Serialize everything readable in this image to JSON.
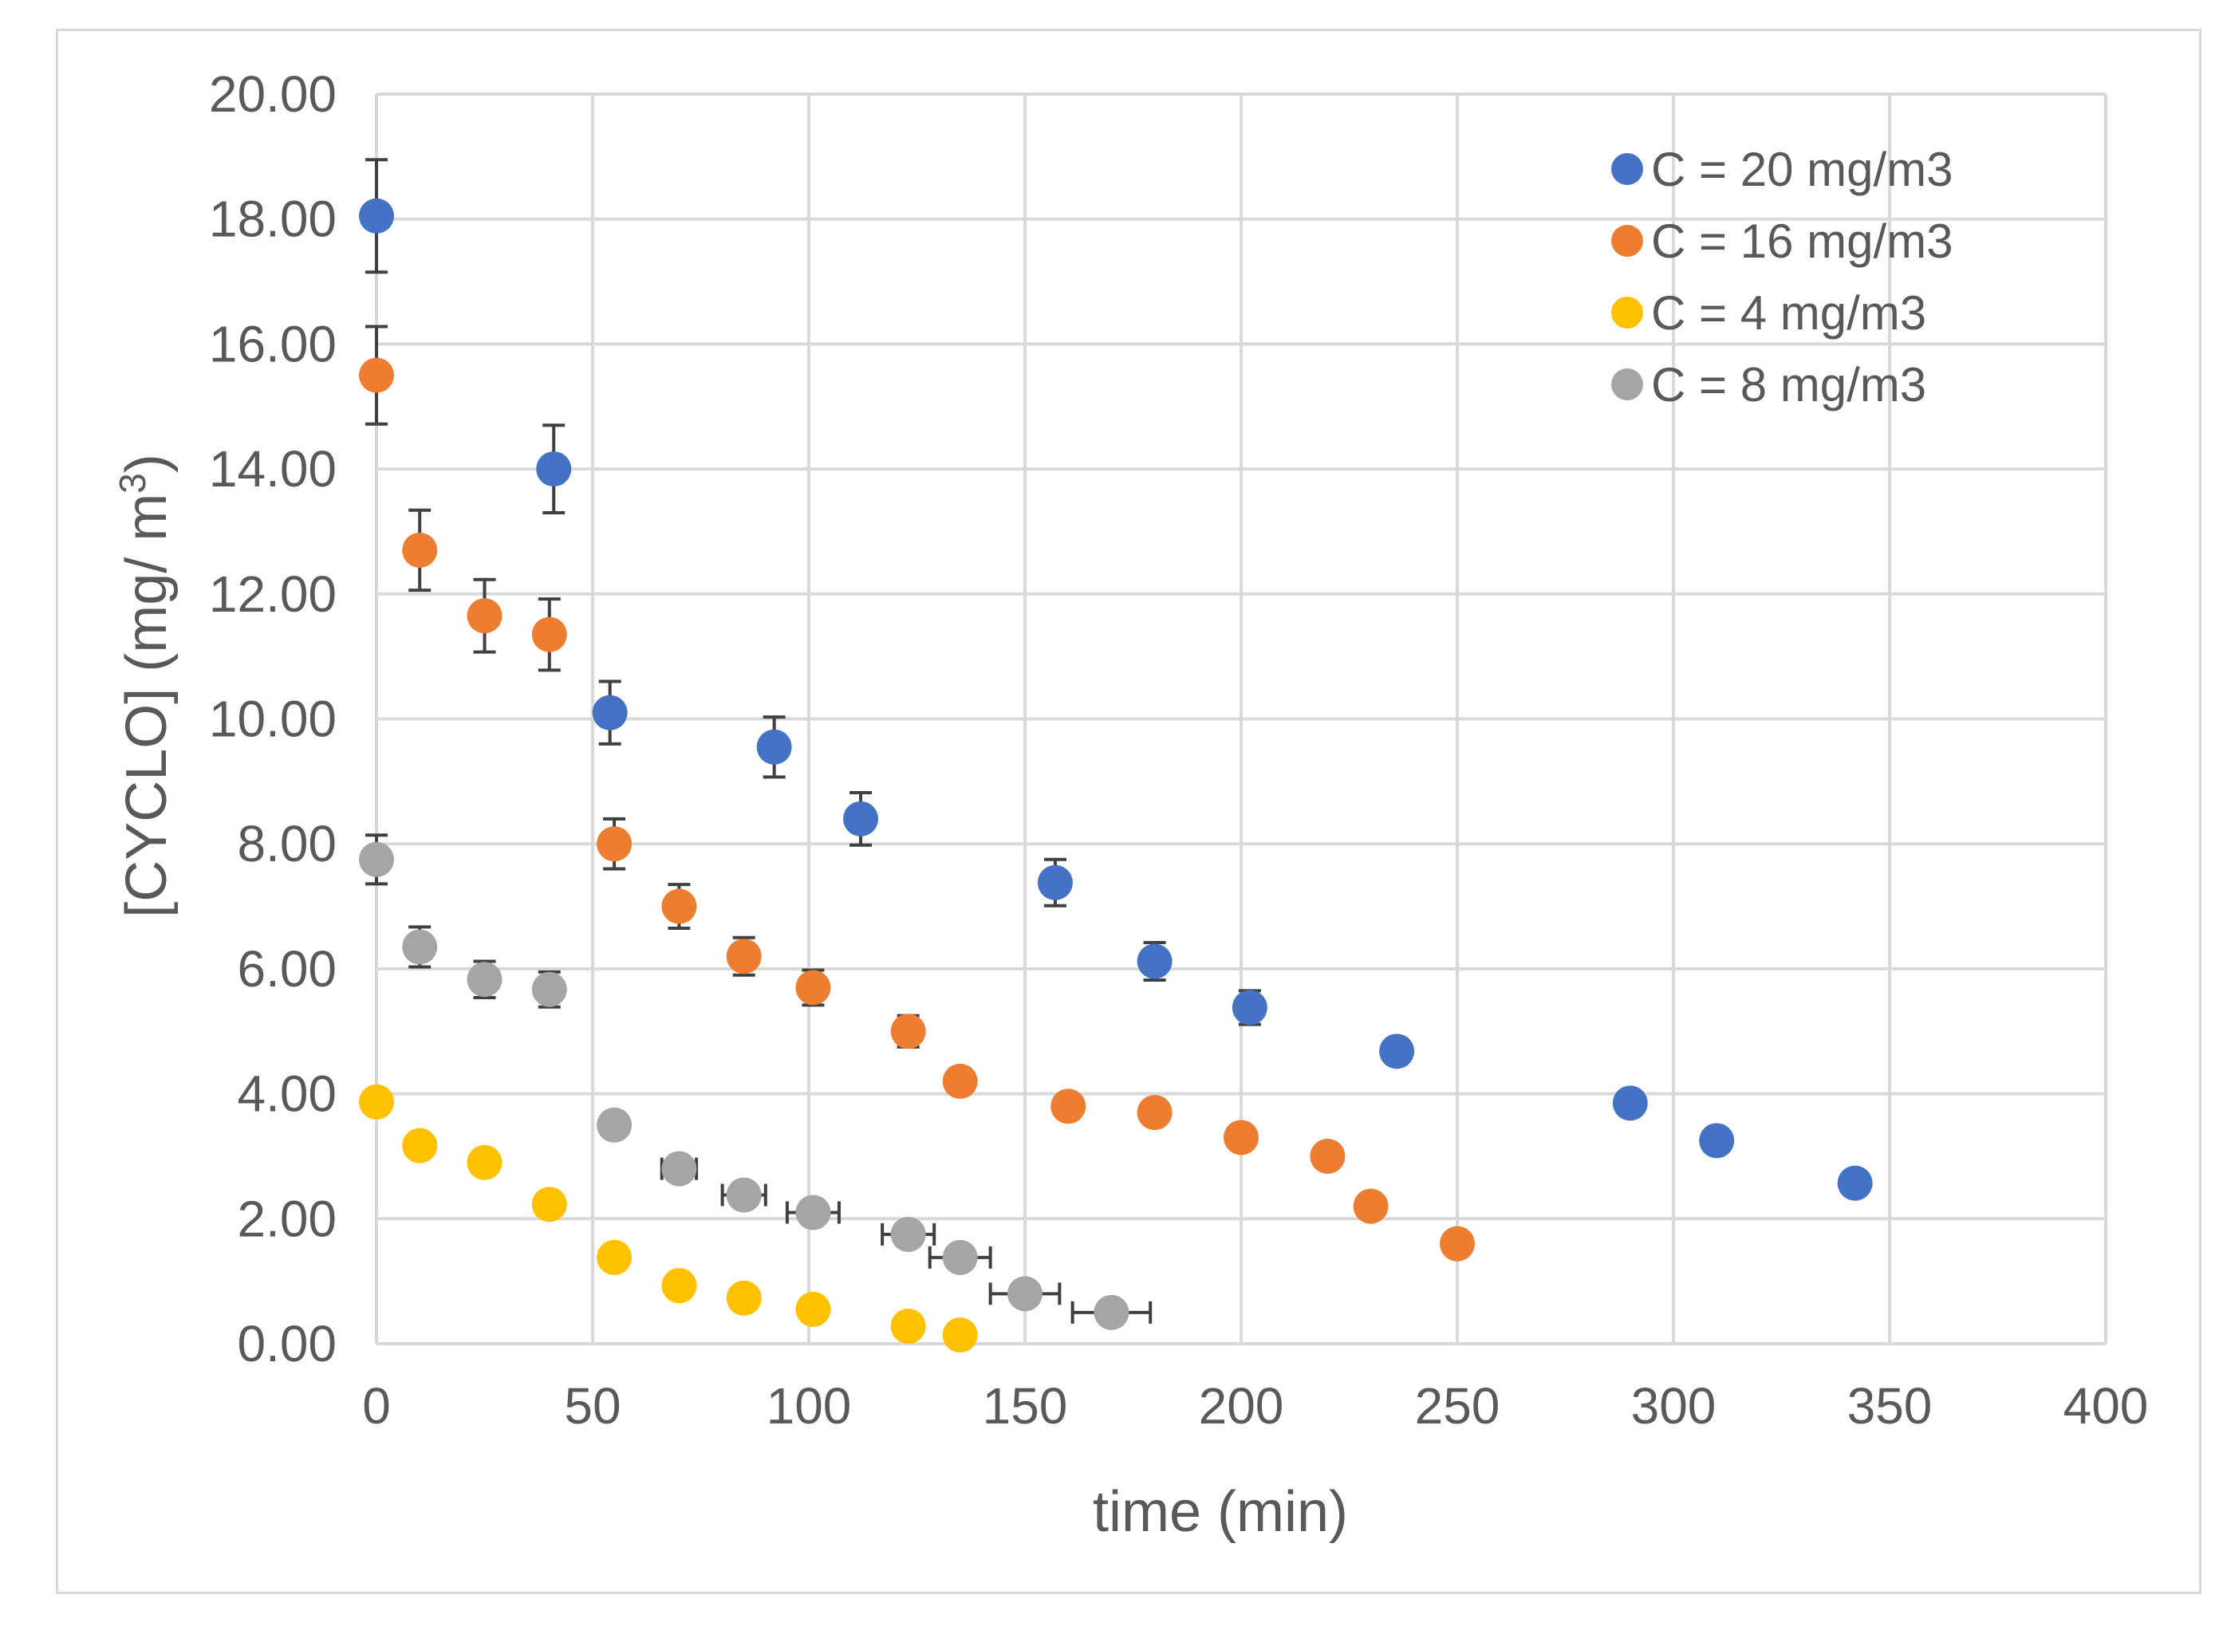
{
  "chart_data": {
    "type": "scatter",
    "title": "",
    "xlabel": "time (min)",
    "ylabel": "[CYCLO]  (mg/ m",
    "ylabel_sup": "3",
    "ylabel_close": ")",
    "xlim": [
      0,
      400
    ],
    "ylim": [
      0,
      20
    ],
    "x_ticks": [
      0,
      50,
      100,
      150,
      200,
      250,
      300,
      350,
      400
    ],
    "x_tick_labels": [
      "0",
      "50",
      "100",
      "150",
      "200",
      "250",
      "300",
      "350",
      "400"
    ],
    "y_ticks": [
      0,
      2,
      4,
      6,
      8,
      10,
      12,
      14,
      16,
      18,
      20
    ],
    "y_tick_labels": [
      "0.00",
      "2.00",
      "4.00",
      "6.00",
      "8.00",
      "10.00",
      "12.00",
      "14.00",
      "16.00",
      "18.00",
      "20.00"
    ],
    "grid": true,
    "legend_position": "top-right",
    "series": [
      {
        "name": "C = 20 mg/m3",
        "color": "#4472c4",
        "points": [
          {
            "x": 0,
            "y": 18.05,
            "yerr": 0.9
          },
          {
            "x": 41,
            "y": 14.0,
            "yerr": 0.7
          },
          {
            "x": 54,
            "y": 10.1,
            "yerr": 0.5
          },
          {
            "x": 92,
            "y": 9.55,
            "yerr": 0.48
          },
          {
            "x": 112,
            "y": 8.4,
            "yerr": 0.42
          },
          {
            "x": 157,
            "y": 7.38,
            "yerr": 0.37
          },
          {
            "x": 180,
            "y": 6.12,
            "yerr": 0.3
          },
          {
            "x": 202,
            "y": 5.38,
            "yerr": 0.27
          },
          {
            "x": 236,
            "y": 4.68,
            "yerr": 0.2
          },
          {
            "x": 290,
            "y": 3.85
          },
          {
            "x": 310,
            "y": 3.25
          },
          {
            "x": 342,
            "y": 2.57
          }
        ]
      },
      {
        "name": "C = 16 mg/m3",
        "color": "#ed7d31",
        "points": [
          {
            "x": 0,
            "y": 15.5,
            "yerr": 0.78
          },
          {
            "x": 10,
            "y": 12.7,
            "yerr": 0.64
          },
          {
            "x": 25,
            "y": 11.65,
            "yerr": 0.58
          },
          {
            "x": 40,
            "y": 11.35,
            "yerr": 0.57
          },
          {
            "x": 55,
            "y": 8.0,
            "yerr": 0.4
          },
          {
            "x": 70,
            "y": 7.0,
            "yerr": 0.35
          },
          {
            "x": 85,
            "y": 6.2,
            "yerr": 0.3
          },
          {
            "x": 101,
            "y": 5.7,
            "yerr": 0.28
          },
          {
            "x": 123,
            "y": 5.0,
            "yerr": 0.25
          },
          {
            "x": 135,
            "y": 4.2,
            "yerr": 0.2
          },
          {
            "x": 160,
            "y": 3.8
          },
          {
            "x": 180,
            "y": 3.7
          },
          {
            "x": 200,
            "y": 3.3
          },
          {
            "x": 220,
            "y": 3.0
          },
          {
            "x": 230,
            "y": 2.2
          },
          {
            "x": 250,
            "y": 1.6
          }
        ]
      },
      {
        "name": "C = 4 mg/m3",
        "color": "#ffc000",
        "points": [
          {
            "x": 0,
            "y": 3.87
          },
          {
            "x": 10,
            "y": 3.17
          },
          {
            "x": 25,
            "y": 2.9
          },
          {
            "x": 40,
            "y": 2.23
          },
          {
            "x": 55,
            "y": 1.38
          },
          {
            "x": 70,
            "y": 0.93
          },
          {
            "x": 85,
            "y": 0.73
          },
          {
            "x": 101,
            "y": 0.55
          },
          {
            "x": 123,
            "y": 0.28
          },
          {
            "x": 135,
            "y": 0.14
          }
        ]
      },
      {
        "name": "C = 8 mg/m3",
        "color": "#a5a5a5",
        "points": [
          {
            "x": 0,
            "y": 7.75,
            "yerr": 0.39
          },
          {
            "x": 10,
            "y": 6.35,
            "yerr": 0.32
          },
          {
            "x": 25,
            "y": 5.83,
            "yerr": 0.29
          },
          {
            "x": 40,
            "y": 5.67,
            "yerr": 0.28
          },
          {
            "x": 55,
            "y": 3.5,
            "xerr": 2
          },
          {
            "x": 70,
            "y": 2.8,
            "xerr": 4
          },
          {
            "x": 85,
            "y": 2.38,
            "xerr": 5
          },
          {
            "x": 101,
            "y": 2.1,
            "xerr": 6
          },
          {
            "x": 123,
            "y": 1.75,
            "xerr": 6
          },
          {
            "x": 135,
            "y": 1.38,
            "xerr": 7
          },
          {
            "x": 150,
            "y": 0.8,
            "xerr": 8
          },
          {
            "x": 170,
            "y": 0.5,
            "xerr": 9
          }
        ]
      }
    ]
  }
}
